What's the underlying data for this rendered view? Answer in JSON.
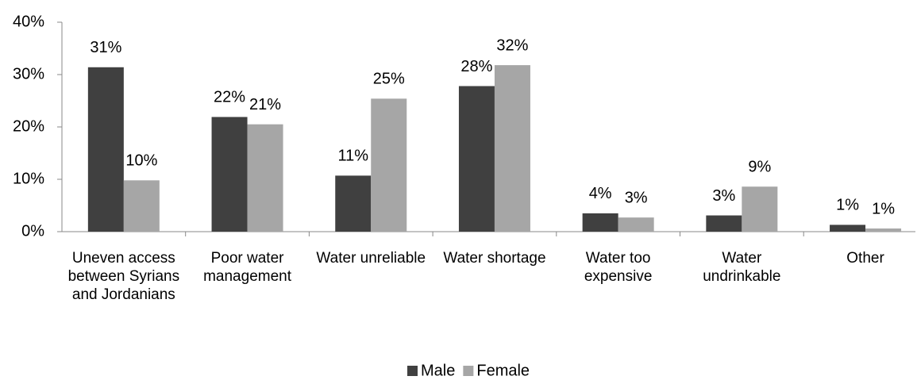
{
  "chart_data": {
    "type": "bar",
    "categories": [
      "Uneven access between Syrians and Jordanians",
      "Poor water management",
      "Water unreliable",
      "Water shortage",
      "Water too expensive",
      "Water undrinkable",
      "Other"
    ],
    "series": [
      {
        "name": "Male",
        "color": "#404040",
        "values": [
          31.4,
          21.9,
          10.7,
          27.8,
          3.5,
          3.1,
          1.3
        ],
        "value_labels": [
          "31%",
          "22%",
          "11%",
          "28%",
          "4%",
          "3%",
          "1%"
        ]
      },
      {
        "name": "Female",
        "color": "#a6a6a6",
        "values": [
          9.8,
          20.5,
          25.4,
          31.8,
          2.7,
          8.6,
          0.6
        ],
        "value_labels": [
          "10%",
          "21%",
          "25%",
          "32%",
          "3%",
          "9%",
          "1%"
        ]
      }
    ],
    "ylim": [
      0,
      40
    ],
    "yticks": [
      {
        "value": 0,
        "label": "0%"
      },
      {
        "value": 10,
        "label": "10%"
      },
      {
        "value": 20,
        "label": "20%"
      },
      {
        "value": 30,
        "label": "30%"
      },
      {
        "value": 40,
        "label": "40%"
      }
    ],
    "grid": false,
    "legend": "bottom"
  }
}
